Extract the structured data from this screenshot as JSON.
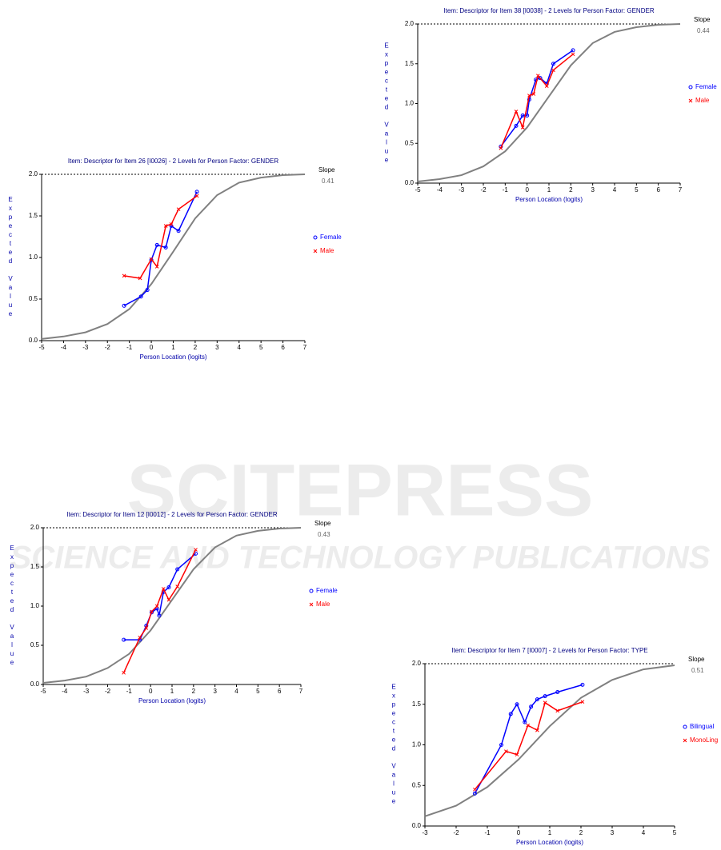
{
  "watermark": {
    "title": "SCITEPRESS",
    "subtitle": "SCIENCE AND TECHNOLOGY PUBLICATIONS"
  },
  "chart_data": [
    {
      "type": "line",
      "title": "Item: Descriptor for Item 26 [I0026] - 2 Levels for Person Factor: GENDER",
      "x_label": "Person Location (logits)",
      "y_label": "Expected Value",
      "slope_label": "Slope",
      "slope": 0.41,
      "xlim": [
        -5,
        7
      ],
      "xticks": [
        -5,
        -4,
        -3,
        -2,
        -1,
        0,
        1,
        2,
        3,
        4,
        5,
        6,
        7
      ],
      "ylim": [
        0,
        2
      ],
      "yticks": [
        {
          "value": 0,
          "label": "0.0"
        },
        0.5,
        {
          "value": 1,
          "label": "1.0"
        },
        1.5,
        {
          "value": 2,
          "label": "2.0"
        }
      ],
      "expected_curve": {
        "color": "#808080",
        "x": [
          -5,
          -4,
          -3,
          -2,
          -1,
          0,
          1,
          2,
          3,
          4,
          5,
          6,
          7
        ],
        "values": [
          0.02,
          0.05,
          0.1,
          0.2,
          0.38,
          0.68,
          1.07,
          1.47,
          1.75,
          1.9,
          1.96,
          1.99,
          2.0
        ]
      },
      "series": [
        {
          "name": "Female",
          "color": "#0000ff",
          "x": [
            -1.24,
            -0.47,
            -0.18,
            0.0,
            0.26,
            0.66,
            0.91,
            1.24,
            2.08
          ],
          "values": [
            0.42,
            0.53,
            0.61,
            0.97,
            1.15,
            1.12,
            1.38,
            1.32,
            1.79
          ]
        },
        {
          "name": "Male",
          "color": "#ff0000",
          "x": [
            -1.24,
            -0.51,
            0.0,
            0.26,
            0.66,
            0.91,
            1.24,
            2.08
          ],
          "values": [
            0.78,
            0.75,
            0.98,
            0.89,
            1.38,
            1.4,
            1.58,
            1.74
          ]
        }
      ]
    },
    {
      "type": "line",
      "title": "Item: Descriptor for Item 38 [I0038] - 2 Levels for Person Factor: GENDER",
      "x_label": "Person Location (logits)",
      "y_label": "Expected Value",
      "slope_label": "Slope",
      "slope": 0.44,
      "xlim": [
        -5,
        7
      ],
      "xticks": [
        -5,
        -4,
        -3,
        -2,
        -1,
        0,
        1,
        2,
        3,
        4,
        5,
        6,
        7
      ],
      "ylim": [
        0,
        2
      ],
      "yticks": [
        {
          "value": 0,
          "label": "0.0"
        },
        0.5,
        {
          "value": 1,
          "label": "1.0"
        },
        1.5,
        {
          "value": 2,
          "label": "2.0"
        }
      ],
      "expected_curve": {
        "color": "#808080",
        "x": [
          -5,
          -4,
          -3,
          -2,
          -1,
          0,
          1,
          2,
          3,
          4,
          5,
          6,
          7
        ],
        "values": [
          0.02,
          0.05,
          0.1,
          0.21,
          0.4,
          0.7,
          1.09,
          1.48,
          1.76,
          1.9,
          1.96,
          1.99,
          2.0
        ]
      },
      "series": [
        {
          "name": "Female",
          "color": "#0000ff",
          "x": [
            -1.2,
            -0.5,
            -0.2,
            0.0,
            0.1,
            0.4,
            0.6,
            0.9,
            1.2,
            2.1
          ],
          "values": [
            0.46,
            0.72,
            0.85,
            0.85,
            1.05,
            1.3,
            1.32,
            1.25,
            1.5,
            1.67
          ]
        },
        {
          "name": "Male",
          "color": "#ff0000",
          "x": [
            -1.2,
            -0.5,
            -0.2,
            0.1,
            0.3,
            0.5,
            0.9,
            1.2,
            2.1
          ],
          "values": [
            0.44,
            0.9,
            0.7,
            1.1,
            1.12,
            1.35,
            1.22,
            1.42,
            1.62
          ]
        }
      ]
    },
    {
      "type": "line",
      "title": "Item: Descriptor for Item 12 [I0012] - 2 Levels for Person Factor: GENDER",
      "x_label": "Person Location (logits)",
      "y_label": "Expected Value",
      "slope_label": "Slope",
      "slope": 0.43,
      "xlim": [
        -5,
        7
      ],
      "xticks": [
        -5,
        -4,
        -3,
        -2,
        -1,
        0,
        1,
        2,
        3,
        4,
        5,
        6,
        7
      ],
      "ylim": [
        0,
        2
      ],
      "yticks": [
        {
          "value": 0,
          "label": "0.0"
        },
        0.5,
        {
          "value": 1,
          "label": "1.0"
        },
        1.5,
        {
          "value": 2,
          "label": "2.0"
        }
      ],
      "expected_curve": {
        "color": "#808080",
        "x": [
          -5,
          -4,
          -3,
          -2,
          -1,
          0,
          1,
          2,
          3,
          4,
          5,
          6,
          7
        ],
        "values": [
          0.02,
          0.05,
          0.1,
          0.21,
          0.39,
          0.69,
          1.08,
          1.47,
          1.75,
          1.9,
          1.96,
          1.99,
          2.0
        ]
      },
      "series": [
        {
          "name": "Female",
          "color": "#0000ff",
          "x": [
            -1.25,
            -0.5,
            -0.2,
            0.05,
            0.3,
            0.4,
            0.6,
            0.85,
            1.25,
            2.1
          ],
          "values": [
            0.57,
            0.57,
            0.75,
            0.92,
            0.97,
            0.88,
            1.18,
            1.24,
            1.47,
            1.67
          ]
        },
        {
          "name": "Male",
          "color": "#ff0000",
          "x": [
            -1.25,
            -0.5,
            -0.2,
            0.05,
            0.3,
            0.6,
            0.85,
            1.25,
            2.1
          ],
          "values": [
            0.15,
            0.6,
            0.72,
            0.93,
            1.0,
            1.22,
            1.08,
            1.25,
            1.72
          ]
        }
      ]
    },
    {
      "type": "line",
      "title": "Item: Descriptor for Item 7 [I0007] - 2 Levels for Person Factor: TYPE",
      "x_label": "Person Location (logits)",
      "y_label": "Expected Value",
      "slope_label": "Slope",
      "slope": 0.51,
      "xlim": [
        -3,
        5
      ],
      "xticks": [
        -3,
        -2,
        -1,
        0,
        1,
        2,
        3,
        4,
        5
      ],
      "ylim": [
        0,
        2
      ],
      "yticks": [
        {
          "value": 0,
          "label": "0.0"
        },
        0.5,
        {
          "value": 1,
          "label": "1.0"
        },
        1.5,
        {
          "value": 2,
          "label": "2.0"
        }
      ],
      "expected_curve": {
        "color": "#808080",
        "x": [
          -3,
          -2,
          -1,
          0,
          1,
          2,
          3,
          4,
          5
        ],
        "values": [
          0.12,
          0.25,
          0.48,
          0.82,
          1.23,
          1.58,
          1.8,
          1.93,
          1.98
        ]
      },
      "series": [
        {
          "name": "Bilingual",
          "color": "#0000ff",
          "x": [
            -1.4,
            -0.55,
            -0.25,
            -0.05,
            0.2,
            0.4,
            0.6,
            0.85,
            1.25,
            2.05
          ],
          "values": [
            0.4,
            1.0,
            1.38,
            1.5,
            1.28,
            1.47,
            1.56,
            1.6,
            1.65,
            1.74
          ]
        },
        {
          "name": "MonoLing",
          "color": "#ff0000",
          "x": [
            -1.4,
            -0.4,
            -0.05,
            0.3,
            0.6,
            0.85,
            1.25,
            2.05
          ],
          "values": [
            0.45,
            0.92,
            0.88,
            1.24,
            1.18,
            1.52,
            1.42,
            1.53
          ]
        }
      ]
    }
  ]
}
